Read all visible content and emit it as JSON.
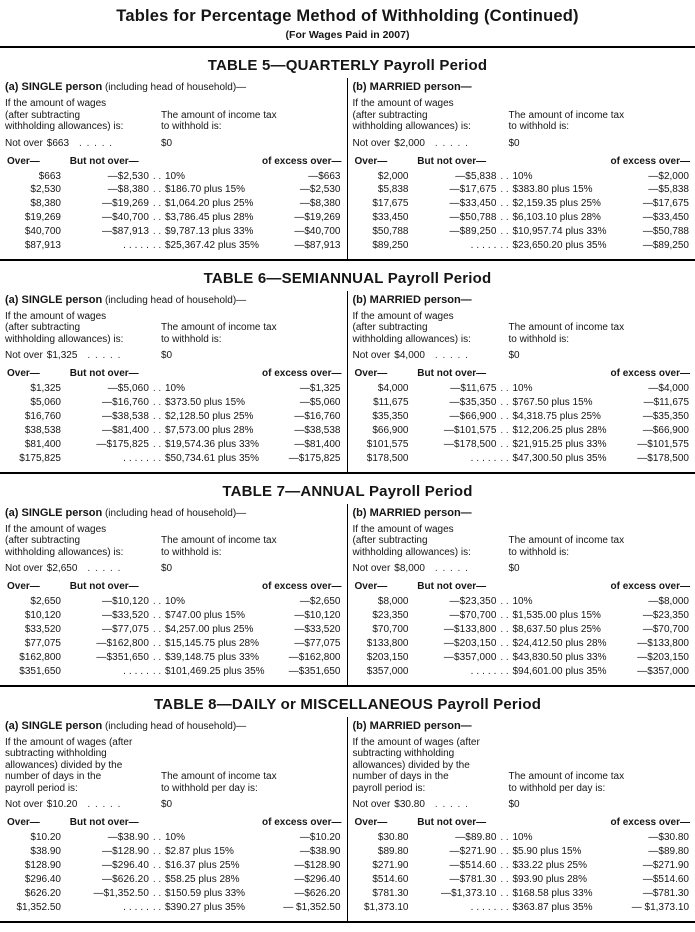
{
  "page": {
    "title": "Tables for Percentage Method of Withholding (Continued)",
    "subtitle": "(For Wages Paid in 2007)"
  },
  "labels": {
    "not_over": "Not over",
    "zero": "$0",
    "over": "Over—",
    "but_not_over": "But not over—",
    "of_excess_over": "of excess over—",
    "not_over_dots": ". . . . .",
    "row_dots": ". ."
  },
  "tables": [
    {
      "title": "TABLE 5—QUARTERLY Payroll Period",
      "sections": [
        {
          "person_bold": "(a) SINGLE person",
          "person_rest": " (including head of household)—",
          "wage_clause": "If the amount of wages\n(after subtracting\nwithholding allowances) is:",
          "tax_clause": "The amount of income tax\nto withhold is:",
          "not_over_amount": "$663",
          "rows": [
            {
              "over": "$663",
              "but": "—$2,530",
              "tax": "10%",
              "excess": "—$663"
            },
            {
              "over": "$2,530",
              "but": "—$8,380",
              "tax": "$186.70 plus 15%",
              "excess": "—$2,530"
            },
            {
              "over": "$8,380",
              "but": "—$19,269",
              "tax": "$1,064.20 plus 25%",
              "excess": "—$8,380"
            },
            {
              "over": "$19,269",
              "but": "—$40,700",
              "tax": "$3,786.45 plus 28%",
              "excess": "—$19,269"
            },
            {
              "over": "$40,700",
              "but": "—$87,913",
              "tax": "$9,787.13 plus 33%",
              "excess": "—$40,700"
            },
            {
              "over": "$87,913",
              "but": ". . . . .",
              "tax": "$25,367.42 plus 35%",
              "excess": "—$87,913"
            }
          ]
        },
        {
          "person_bold": "(b) MARRIED person—",
          "person_rest": "",
          "wage_clause": "If the amount of wages\n(after subtracting\nwithholding allowances) is:",
          "tax_clause": "The amount of income tax\nto withhold is:",
          "not_over_amount": "$2,000",
          "rows": [
            {
              "over": "$2,000",
              "but": "—$5,838",
              "tax": "10%",
              "excess": "—$2,000"
            },
            {
              "over": "$5,838",
              "but": "—$17,675",
              "tax": "$383.80 plus 15%",
              "excess": "—$5,838"
            },
            {
              "over": "$17,675",
              "but": "—$33,450",
              "tax": "$2,159.35 plus 25%",
              "excess": "—$17,675"
            },
            {
              "over": "$33,450",
              "but": "—$50,788",
              "tax": "$6,103.10 plus 28%",
              "excess": "—$33,450"
            },
            {
              "over": "$50,788",
              "but": "—$89,250",
              "tax": "$10,957.74 plus 33%",
              "excess": "—$50,788"
            },
            {
              "over": "$89,250",
              "but": ". . . . .",
              "tax": "$23,650.20 plus 35%",
              "excess": "—$89,250"
            }
          ]
        }
      ]
    },
    {
      "title": "TABLE 6—SEMIANNUAL Payroll Period",
      "sections": [
        {
          "person_bold": "(a) SINGLE person",
          "person_rest": " (including head of household)—",
          "wage_clause": "If the amount of wages\n(after subtracting\nwithholding allowances) is:",
          "tax_clause": "The amount of income tax\nto withhold is:",
          "not_over_amount": "$1,325",
          "rows": [
            {
              "over": "$1,325",
              "but": "—$5,060",
              "tax": "10%",
              "excess": "—$1,325"
            },
            {
              "over": "$5,060",
              "but": "—$16,760",
              "tax": "$373.50 plus 15%",
              "excess": "—$5,060"
            },
            {
              "over": "$16,760",
              "but": "—$38,538",
              "tax": "$2,128.50 plus 25%",
              "excess": "—$16,760"
            },
            {
              "over": "$38,538",
              "but": "—$81,400",
              "tax": "$7,573.00 plus 28%",
              "excess": "—$38,538"
            },
            {
              "over": "$81,400",
              "but": "—$175,825",
              "tax": "$19,574.36 plus 33%",
              "excess": "—$81,400"
            },
            {
              "over": "$175,825",
              "but": ". . . . .",
              "tax": "$50,734.61 plus 35%",
              "excess": "—$175,825"
            }
          ]
        },
        {
          "person_bold": "(b) MARRIED person—",
          "person_rest": "",
          "wage_clause": "If the amount of wages\n(after subtracting\nwithholding allowances) is:",
          "tax_clause": "The amount of income tax\nto withhold is:",
          "not_over_amount": "$4,000",
          "rows": [
            {
              "over": "$4,000",
              "but": "—$11,675",
              "tax": "10%",
              "excess": "—$4,000"
            },
            {
              "over": "$11,675",
              "but": "—$35,350",
              "tax": "$767.50 plus 15%",
              "excess": "—$11,675"
            },
            {
              "over": "$35,350",
              "but": "—$66,900",
              "tax": "$4,318.75 plus 25%",
              "excess": "—$35,350"
            },
            {
              "over": "$66,900",
              "but": "—$101,575",
              "tax": "$12,206.25 plus 28%",
              "excess": "—$66,900"
            },
            {
              "over": "$101,575",
              "but": "—$178,500",
              "tax": "$21,915.25 plus 33%",
              "excess": "—$101,575"
            },
            {
              "over": "$178,500",
              "but": ". . . . .",
              "tax": "$47,300.50 plus 35%",
              "excess": "—$178,500"
            }
          ]
        }
      ]
    },
    {
      "title": "TABLE 7—ANNUAL Payroll Period",
      "sections": [
        {
          "person_bold": "(a) SINGLE person",
          "person_rest": " (including head of household)—",
          "wage_clause": "If the amount of wages\n(after subtracting\nwithholding allowances) is:",
          "tax_clause": "The amount of income tax\nto withhold is:",
          "not_over_amount": "$2,650",
          "rows": [
            {
              "over": "$2,650",
              "but": "—$10,120",
              "tax": "10%",
              "excess": "—$2,650"
            },
            {
              "over": "$10,120",
              "but": "—$33,520",
              "tax": "$747.00 plus 15%",
              "excess": "—$10,120"
            },
            {
              "over": "$33,520",
              "but": "—$77,075",
              "tax": "$4,257.00 plus 25%",
              "excess": "—$33,520"
            },
            {
              "over": "$77,075",
              "but": "—$162,800",
              "tax": "$15,145.75 plus 28%",
              "excess": "—$77,075"
            },
            {
              "over": "$162,800",
              "but": "—$351,650",
              "tax": "$39,148.75 plus 33%",
              "excess": "—$162,800"
            },
            {
              "over": "$351,650",
              "but": ". . . . .",
              "tax": "$101,469.25 plus 35%",
              "excess": "—$351,650"
            }
          ]
        },
        {
          "person_bold": "(b) MARRIED person—",
          "person_rest": "",
          "wage_clause": "If the amount of wages\n(after subtracting\nwithholding allowances) is:",
          "tax_clause": "The amount of income tax\nto withhold is:",
          "not_over_amount": "$8,000",
          "rows": [
            {
              "over": "$8,000",
              "but": "—$23,350",
              "tax": "10%",
              "excess": "—$8,000"
            },
            {
              "over": "$23,350",
              "but": "—$70,700",
              "tax": "$1,535.00 plus 15%",
              "excess": "—$23,350"
            },
            {
              "over": "$70,700",
              "but": "—$133,800",
              "tax": "$8,637.50 plus 25%",
              "excess": "—$70,700"
            },
            {
              "over": "$133,800",
              "but": "—$203,150",
              "tax": "$24,412.50 plus 28%",
              "excess": "—$133,800"
            },
            {
              "over": "$203,150",
              "but": "—$357,000",
              "tax": "$43,830.50 plus 33%",
              "excess": "—$203,150"
            },
            {
              "over": "$357,000",
              "but": ". . . . .",
              "tax": "$94,601.00 plus 35%",
              "excess": "—$357,000"
            }
          ]
        }
      ]
    },
    {
      "title": "TABLE 8—DAILY or MISCELLANEOUS Payroll Period",
      "sections": [
        {
          "person_bold": "(a) SINGLE person",
          "person_rest": " (including head of household)—",
          "wage_clause": "If the amount of wages (after\nsubtracting withholding\nallowances) divided by the\nnumber of days in the\npayroll period is:",
          "tax_clause": "The amount of income tax\nto withhold per day is:",
          "not_over_amount": "$10.20",
          "rows": [
            {
              "over": "$10.20",
              "but": "—$38.90",
              "tax": "10%",
              "excess": "—$10.20"
            },
            {
              "over": "$38.90",
              "but": "—$128.90",
              "tax": "$2.87 plus 15%",
              "excess": "—$38.90"
            },
            {
              "over": "$128.90",
              "but": "—$296.40",
              "tax": "$16.37 plus 25%",
              "excess": "—$128.90"
            },
            {
              "over": "$296.40",
              "but": "—$626.20",
              "tax": "$58.25 plus 28%",
              "excess": "—$296.40"
            },
            {
              "over": "$626.20",
              "but": "—$1,352.50",
              "tax": "$150.59 plus 33%",
              "excess": "—$626.20"
            },
            {
              "over": "$1,352.50",
              "but": ". . . . .",
              "tax": "$390.27 plus 35%",
              "excess": "— $1,352.50"
            }
          ]
        },
        {
          "person_bold": "(b) MARRIED person—",
          "person_rest": "",
          "wage_clause": "If the amount of wages (after\nsubtracting withholding\nallowances) divided by the\nnumber of days in the\npayroll period is:",
          "tax_clause": "The amount of income tax\nto withhold per day is:",
          "not_over_amount": "$30.80",
          "rows": [
            {
              "over": "$30.80",
              "but": "—$89.80",
              "tax": "10%",
              "excess": "—$30.80"
            },
            {
              "over": "$89.80",
              "but": "—$271.90",
              "tax": "$5.90 plus 15%",
              "excess": "—$89.80"
            },
            {
              "over": "$271.90",
              "but": "—$514.60",
              "tax": "$33.22 plus 25%",
              "excess": "—$271.90"
            },
            {
              "over": "$514.60",
              "but": "—$781.30",
              "tax": "$93.90 plus 28%",
              "excess": "—$514.60"
            },
            {
              "over": "$781.30",
              "but": "—$1,373.10",
              "tax": "$168.58 plus 33%",
              "excess": "—$781.30"
            },
            {
              "over": "$1,373.10",
              "but": ". . . . .",
              "tax": "$363.87 plus 35%",
              "excess": "— $1,373.10"
            }
          ]
        }
      ]
    }
  ]
}
